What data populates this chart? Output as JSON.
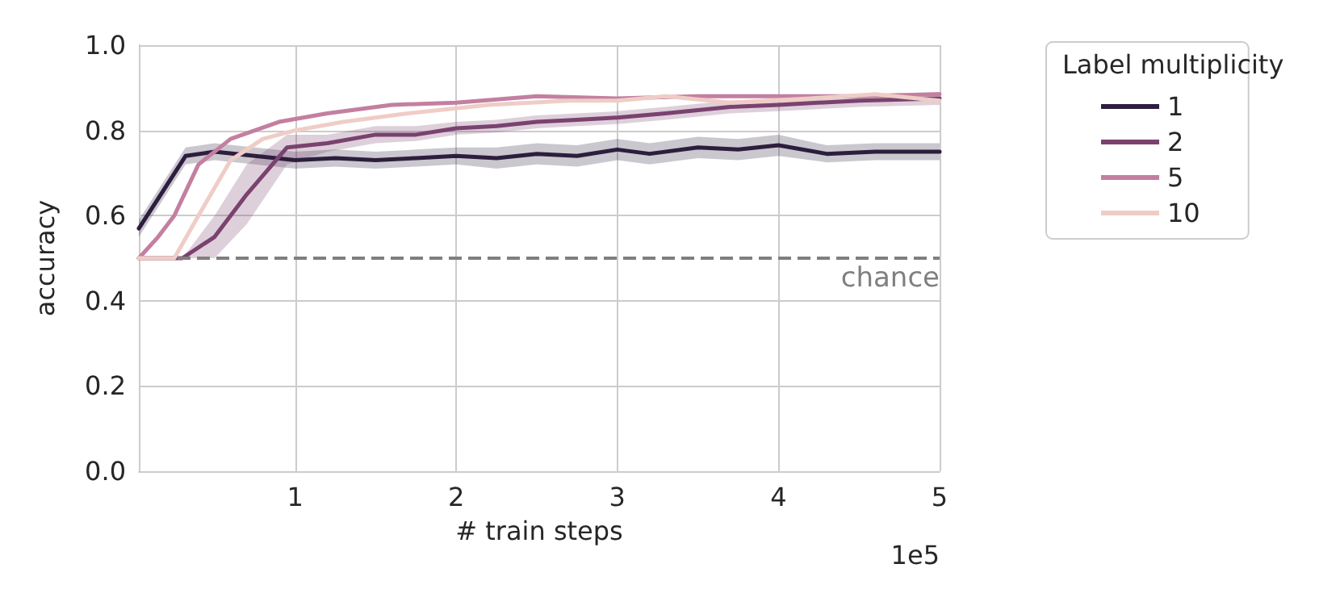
{
  "chart_data": {
    "type": "line",
    "xlabel": "# train steps",
    "ylabel": "accuracy",
    "legend_title": "Label multiplicity",
    "annotations": [
      "1e5"
    ],
    "xlim": [
      0.03,
      5
    ],
    "xticks": [
      1,
      2,
      3,
      4,
      5
    ],
    "ylim": [
      0,
      1
    ],
    "yticks": [
      {
        "value": 0,
        "label": "0.0"
      },
      {
        "value": 0.2,
        "label": "0.2"
      },
      {
        "value": 0.4,
        "label": "0.4"
      },
      {
        "value": 0.6,
        "label": "0.6"
      },
      {
        "value": 0.8,
        "label": "0.8"
      },
      {
        "value": 1,
        "label": "1.0"
      }
    ],
    "grid": true,
    "legend": "top right",
    "line_style": "solid",
    "marker": "none",
    "ref_lines": [
      {
        "axis": "y",
        "value": 0.5,
        "label": "chance",
        "color": "#7f7f7f",
        "line_style": "dashed"
      }
    ],
    "series": [
      {
        "name": "1",
        "color": "#2d1e3e",
        "x": [
          0.03,
          0.15,
          0.32,
          0.5,
          0.75,
          1,
          1.25,
          1.5,
          1.75,
          2,
          2.25,
          2.5,
          2.75,
          3,
          3.2,
          3.5,
          3.75,
          4,
          4.3,
          4.6,
          5
        ],
        "values": [
          0.57,
          0.64,
          0.74,
          0.75,
          0.74,
          0.73,
          0.735,
          0.73,
          0.735,
          0.74,
          0.735,
          0.745,
          0.74,
          0.755,
          0.745,
          0.76,
          0.755,
          0.765,
          0.745,
          0.75,
          0.75
        ],
        "lower": [
          0.55,
          0.62,
          0.72,
          0.73,
          0.72,
          0.71,
          0.715,
          0.71,
          0.715,
          0.72,
          0.71,
          0.72,
          0.715,
          0.73,
          0.72,
          0.735,
          0.73,
          0.74,
          0.725,
          0.73,
          0.73
        ],
        "upper": [
          0.59,
          0.66,
          0.76,
          0.77,
          0.76,
          0.75,
          0.755,
          0.75,
          0.755,
          0.76,
          0.76,
          0.77,
          0.765,
          0.78,
          0.77,
          0.785,
          0.78,
          0.79,
          0.765,
          0.77,
          0.77
        ]
      },
      {
        "name": "2",
        "color": "#7a426f",
        "x": [
          0.03,
          0.3,
          0.5,
          0.7,
          0.95,
          1.2,
          1.5,
          1.75,
          2,
          2.25,
          2.5,
          2.75,
          3,
          3.3,
          3.7,
          4,
          4.5,
          5
        ],
        "values": [
          0.5,
          0.5,
          0.55,
          0.65,
          0.76,
          0.77,
          0.79,
          0.79,
          0.805,
          0.81,
          0.82,
          0.825,
          0.83,
          0.84,
          0.855,
          0.86,
          0.87,
          0.875
        ],
        "lower": [
          0.5,
          0.5,
          0.5,
          0.58,
          0.72,
          0.75,
          0.77,
          0.775,
          0.79,
          0.795,
          0.805,
          0.81,
          0.815,
          0.825,
          0.84,
          0.845,
          0.855,
          0.86
        ],
        "upper": [
          0.5,
          0.5,
          0.6,
          0.72,
          0.79,
          0.79,
          0.81,
          0.81,
          0.82,
          0.825,
          0.835,
          0.84,
          0.845,
          0.855,
          0.87,
          0.875,
          0.885,
          0.89
        ]
      },
      {
        "name": "5",
        "color": "#c47fa0",
        "x": [
          0.03,
          0.15,
          0.25,
          0.4,
          0.6,
          0.9,
          1.2,
          1.6,
          2,
          2.5,
          3,
          3.5,
          4,
          4.5,
          5
        ],
        "values": [
          0.5,
          0.55,
          0.6,
          0.72,
          0.78,
          0.82,
          0.84,
          0.86,
          0.865,
          0.88,
          0.875,
          0.88,
          0.88,
          0.88,
          0.885
        ]
      },
      {
        "name": "10",
        "color": "#efcdc6",
        "x": [
          0.03,
          0.25,
          0.4,
          0.6,
          0.8,
          1,
          1.3,
          1.7,
          2.2,
          2.7,
          3,
          3.3,
          3.7,
          4.2,
          4.6,
          5
        ],
        "values": [
          0.5,
          0.5,
          0.6,
          0.73,
          0.78,
          0.8,
          0.82,
          0.84,
          0.86,
          0.87,
          0.87,
          0.88,
          0.865,
          0.875,
          0.885,
          0.87
        ]
      }
    ]
  }
}
